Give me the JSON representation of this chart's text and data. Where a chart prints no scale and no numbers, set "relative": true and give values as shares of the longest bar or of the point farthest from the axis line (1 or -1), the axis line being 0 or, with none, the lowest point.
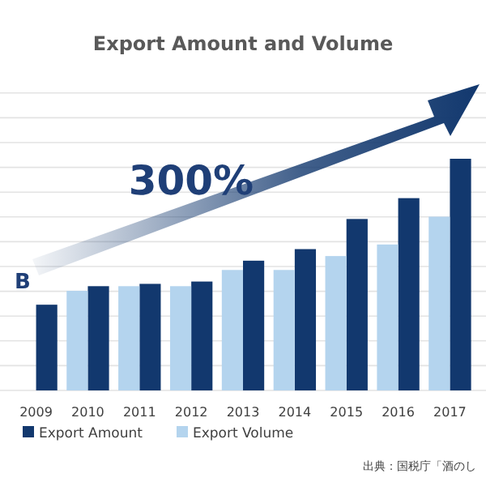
{
  "chart_data": {
    "type": "bar",
    "title": "Export Amount and Volume",
    "relative": true,
    "grid": "y",
    "legend": "bottom",
    "categories": [
      "2009",
      "2010",
      "2011",
      "2012",
      "2013",
      "2014",
      "2015",
      "2016",
      "2017"
    ],
    "series": [
      {
        "name": "Export Amount",
        "color": "#12386e",
        "values": [
          0.37,
          0.45,
          0.46,
          0.47,
          0.56,
          0.61,
          0.74,
          0.83,
          1
        ]
      },
      {
        "name": "Export Volume",
        "color": "#b4d4ee",
        "values": [
          null,
          0.43,
          0.45,
          0.45,
          0.52,
          0.52,
          0.58,
          0.63,
          0.75
        ]
      }
    ],
    "annotations": [
      "300%",
      "B",
      "出典：国税庁「酒のし"
    ]
  }
}
